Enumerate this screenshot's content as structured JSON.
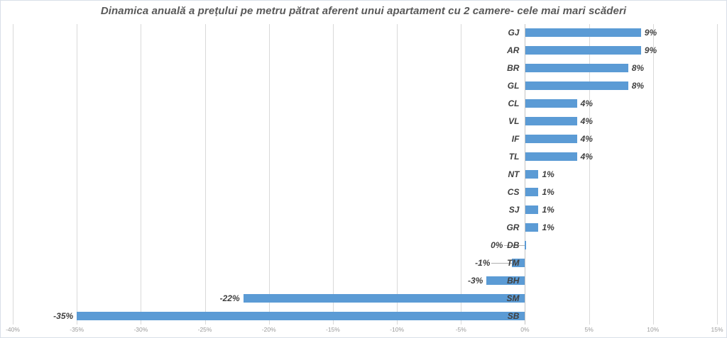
{
  "title": "Dinamica anuală a prețului pe metru pătrat aferent unui apartament cu 2 camere- cele mai mari scăderi",
  "colors": {
    "bar": "#5b9bd5",
    "gridline": "#d9d9d9",
    "title_text": "#595959",
    "label_text": "#404040",
    "tick_text": "#9a9a9a",
    "background": "#ffffff"
  },
  "chart_data": {
    "type": "bar",
    "orientation": "horizontal",
    "title": "Dinamica anuală a prețului pe metru pătrat aferent unui apartament cu 2 camere- cele mai mari scăderi",
    "categories": [
      "GJ",
      "AR",
      "BR",
      "GL",
      "CL",
      "VL",
      "IF",
      "TL",
      "NT",
      "CS",
      "SJ",
      "GR",
      "DB",
      "TM",
      "BH",
      "SM",
      "SB"
    ],
    "values": [
      9,
      9,
      8,
      8,
      4,
      4,
      4,
      4,
      1,
      1,
      1,
      1,
      0,
      -1,
      -3,
      -22,
      -35
    ],
    "data_labels": [
      "9%",
      "9%",
      "8%",
      "8%",
      "4%",
      "4%",
      "4%",
      "4%",
      "1%",
      "1%",
      "1%",
      "1%",
      "0%",
      "-1%",
      "-3%",
      "-22%",
      "-35%"
    ],
    "xlabel": "",
    "ylabel": "",
    "xlim": [
      -40,
      15
    ],
    "x_tick_step": 5,
    "x_tick_labels": [
      "-40%",
      "-35%",
      "-30%",
      "-25%",
      "-20%",
      "-15%",
      "-10%",
      "-5%",
      "0%",
      "5%",
      "10%",
      "15%"
    ],
    "grid": "vertical-only",
    "legend": "none",
    "bar_color": "#5b9bd5"
  }
}
